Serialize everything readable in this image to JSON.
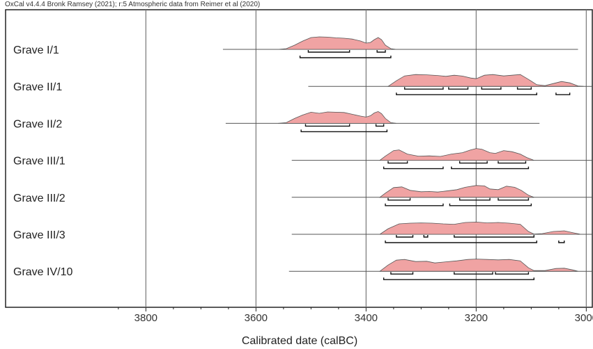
{
  "header": "OxCal v4.4.4 Bronk Ramsey (2021); r:5 Atmospheric data from Reimer et al (2020)",
  "chart_data": {
    "type": "area",
    "title": "",
    "xlabel": "Calibrated date (calBC)",
    "ylabel": "",
    "xlim": [
      3885,
      2830
    ],
    "x_reversed": true,
    "xticks": [
      3800,
      3600,
      3400,
      3200,
      3000
    ],
    "xtick_labels": [
      "3800",
      "3600",
      "3400",
      "3200",
      "3000"
    ],
    "grid": "vertical",
    "colors": {
      "fill": "#f0a3a3",
      "outline": "#555555",
      "baseline": "#555555",
      "range": "#111111",
      "grid": "#777777"
    },
    "series": [
      {
        "name": "Grave I/1",
        "baseline": [
          3660,
          3015
        ],
        "density": [
          [
            3560,
            0
          ],
          [
            3545,
            0.05
          ],
          [
            3530,
            0.3
          ],
          [
            3515,
            0.6
          ],
          [
            3500,
            0.85
          ],
          [
            3485,
            0.9
          ],
          [
            3470,
            0.88
          ],
          [
            3455,
            0.83
          ],
          [
            3440,
            0.8
          ],
          [
            3425,
            0.74
          ],
          [
            3410,
            0.6
          ],
          [
            3400,
            0.45
          ],
          [
            3392,
            0.5
          ],
          [
            3385,
            0.7
          ],
          [
            3378,
            0.85
          ],
          [
            3372,
            0.7
          ],
          [
            3365,
            0.3
          ],
          [
            3355,
            0.05
          ],
          [
            3345,
            0
          ]
        ],
        "ranges_68": [
          [
            3505,
            3430
          ],
          [
            3380,
            3365
          ]
        ],
        "ranges_95": [
          [
            3520,
            3355
          ]
        ]
      },
      {
        "name": "Grave II/1",
        "baseline": [
          3505,
          2890
        ],
        "density": [
          [
            3360,
            0
          ],
          [
            3345,
            0.4
          ],
          [
            3330,
            0.75
          ],
          [
            3310,
            0.85
          ],
          [
            3290,
            0.83
          ],
          [
            3270,
            0.78
          ],
          [
            3255,
            0.72
          ],
          [
            3240,
            0.8
          ],
          [
            3225,
            0.74
          ],
          [
            3210,
            0.6
          ],
          [
            3200,
            0.55
          ],
          [
            3185,
            0.8
          ],
          [
            3170,
            0.85
          ],
          [
            3150,
            0.75
          ],
          [
            3135,
            0.8
          ],
          [
            3120,
            0.85
          ],
          [
            3105,
            0.5
          ],
          [
            3090,
            0.12
          ],
          [
            3075,
            0.05
          ],
          [
            3060,
            0.2
          ],
          [
            3045,
            0.35
          ],
          [
            3030,
            0.25
          ],
          [
            3015,
            0.03
          ],
          [
            3005,
            0
          ]
        ],
        "ranges_68": [
          [
            3330,
            3260
          ],
          [
            3250,
            3215
          ],
          [
            3190,
            3155
          ],
          [
            3125,
            3100
          ]
        ],
        "ranges_95": [
          [
            3345,
            3090
          ],
          [
            3055,
            3030
          ]
        ]
      },
      {
        "name": "Grave II/2",
        "baseline": [
          3655,
          3085
        ],
        "density": [
          [
            3560,
            0
          ],
          [
            3545,
            0.05
          ],
          [
            3530,
            0.35
          ],
          [
            3515,
            0.6
          ],
          [
            3500,
            0.8
          ],
          [
            3485,
            0.72
          ],
          [
            3470,
            0.82
          ],
          [
            3455,
            0.8
          ],
          [
            3440,
            0.78
          ],
          [
            3425,
            0.65
          ],
          [
            3410,
            0.52
          ],
          [
            3400,
            0.45
          ],
          [
            3392,
            0.55
          ],
          [
            3385,
            0.75
          ],
          [
            3378,
            0.85
          ],
          [
            3372,
            0.7
          ],
          [
            3365,
            0.35
          ],
          [
            3355,
            0.05
          ],
          [
            3345,
            0
          ]
        ],
        "ranges_68": [
          [
            3510,
            3430
          ],
          [
            3382,
            3368
          ]
        ],
        "ranges_95": [
          [
            3518,
            3362
          ]
        ]
      },
      {
        "name": "Grave III/1",
        "baseline": [
          3535,
          2905
        ],
        "density": [
          [
            3375,
            0
          ],
          [
            3365,
            0.3
          ],
          [
            3350,
            0.7
          ],
          [
            3340,
            0.75
          ],
          [
            3325,
            0.45
          ],
          [
            3305,
            0.3
          ],
          [
            3285,
            0.32
          ],
          [
            3265,
            0.28
          ],
          [
            3245,
            0.45
          ],
          [
            3225,
            0.55
          ],
          [
            3210,
            0.75
          ],
          [
            3200,
            0.85
          ],
          [
            3190,
            0.8
          ],
          [
            3175,
            0.55
          ],
          [
            3165,
            0.5
          ],
          [
            3150,
            0.7
          ],
          [
            3135,
            0.62
          ],
          [
            3120,
            0.45
          ],
          [
            3108,
            0.2
          ],
          [
            3095,
            0
          ]
        ],
        "ranges_68": [
          [
            3360,
            3325
          ],
          [
            3230,
            3180
          ],
          [
            3160,
            3110
          ]
        ],
        "ranges_95": [
          [
            3368,
            3260
          ],
          [
            3245,
            3105
          ]
        ]
      },
      {
        "name": "Grave III/2",
        "baseline": [
          3535,
          2900
        ],
        "density": [
          [
            3375,
            0
          ],
          [
            3365,
            0.3
          ],
          [
            3350,
            0.7
          ],
          [
            3335,
            0.75
          ],
          [
            3320,
            0.5
          ],
          [
            3300,
            0.4
          ],
          [
            3285,
            0.42
          ],
          [
            3270,
            0.38
          ],
          [
            3255,
            0.45
          ],
          [
            3235,
            0.55
          ],
          [
            3220,
            0.72
          ],
          [
            3200,
            0.85
          ],
          [
            3185,
            0.82
          ],
          [
            3175,
            0.6
          ],
          [
            3160,
            0.55
          ],
          [
            3145,
            0.8
          ],
          [
            3130,
            0.72
          ],
          [
            3118,
            0.5
          ],
          [
            3105,
            0.15
          ],
          [
            3095,
            0
          ]
        ],
        "ranges_68": [
          [
            3360,
            3320
          ],
          [
            3230,
            3175
          ],
          [
            3160,
            3105
          ]
        ],
        "ranges_95": [
          [
            3365,
            3260
          ],
          [
            3248,
            3100
          ]
        ]
      },
      {
        "name": "Grave III/3",
        "baseline": [
          3535,
          2885
        ],
        "density": [
          [
            3375,
            0
          ],
          [
            3360,
            0.4
          ],
          [
            3340,
            0.75
          ],
          [
            3320,
            0.8
          ],
          [
            3300,
            0.82
          ],
          [
            3280,
            0.8
          ],
          [
            3260,
            0.75
          ],
          [
            3240,
            0.72
          ],
          [
            3220,
            0.85
          ],
          [
            3200,
            0.88
          ],
          [
            3180,
            0.82
          ],
          [
            3160,
            0.85
          ],
          [
            3140,
            0.8
          ],
          [
            3120,
            0.72
          ],
          [
            3105,
            0.2
          ],
          [
            3095,
            0.02
          ],
          [
            3080,
            0.05
          ],
          [
            3060,
            0.2
          ],
          [
            3040,
            0.25
          ],
          [
            3025,
            0.12
          ],
          [
            3010,
            0
          ]
        ],
        "ranges_68": [
          [
            3345,
            3315
          ],
          [
            3295,
            3288
          ],
          [
            3240,
            3095
          ]
        ],
        "ranges_95": [
          [
            3365,
            3090
          ],
          [
            3050,
            3040
          ]
        ]
      },
      {
        "name": "Grave IV/10",
        "baseline": [
          3540,
          2890
        ],
        "density": [
          [
            3375,
            0
          ],
          [
            3360,
            0.45
          ],
          [
            3345,
            0.8
          ],
          [
            3330,
            0.85
          ],
          [
            3310,
            0.7
          ],
          [
            3290,
            0.72
          ],
          [
            3275,
            0.6
          ],
          [
            3255,
            0.68
          ],
          [
            3235,
            0.75
          ],
          [
            3215,
            0.85
          ],
          [
            3200,
            0.88
          ],
          [
            3180,
            0.85
          ],
          [
            3160,
            0.82
          ],
          [
            3140,
            0.85
          ],
          [
            3120,
            0.75
          ],
          [
            3105,
            0.25
          ],
          [
            3095,
            0.05
          ],
          [
            3075,
            0.05
          ],
          [
            3055,
            0.2
          ],
          [
            3040,
            0.22
          ],
          [
            3025,
            0.1
          ],
          [
            3015,
            0
          ]
        ],
        "ranges_68": [
          [
            3355,
            3315
          ],
          [
            3240,
            3170
          ],
          [
            3165,
            3105
          ]
        ],
        "ranges_95": [
          [
            3368,
            3095
          ]
        ]
      }
    ]
  }
}
